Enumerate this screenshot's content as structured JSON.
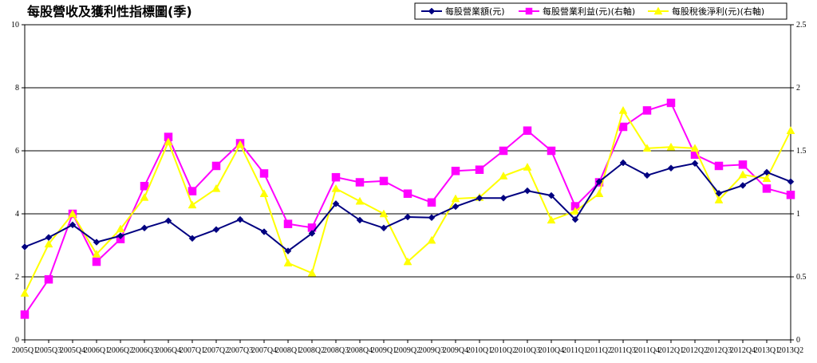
{
  "chart_data": {
    "type": "line",
    "title": "每股營收及獲利性指標圖(季)",
    "legend_position": "top-right",
    "grid": true,
    "categories": [
      "2005Q1",
      "2005Q3",
      "2005Q4",
      "2006Q1",
      "2006Q2",
      "2006Q3",
      "2006Q4",
      "2007Q1",
      "2007Q2",
      "2007Q3",
      "2007Q4",
      "2008Q1",
      "2008Q2",
      "2008Q3",
      "2008Q4",
      "2009Q1",
      "2009Q2",
      "2009Q3",
      "2009Q4",
      "2010Q1",
      "2010Q2",
      "2010Q3",
      "2010Q4",
      "2011Q1",
      "2011Q2",
      "2011Q3",
      "2011Q4",
      "2012Q1",
      "2012Q2",
      "2012Q3",
      "2012Q4",
      "2013Q1",
      "2013Q2"
    ],
    "y_left": {
      "min": 0,
      "max": 10,
      "ticks": [
        "0",
        "2",
        "4",
        "6",
        "8",
        "10"
      ]
    },
    "y_right": {
      "min": 0,
      "max": 2.5,
      "ticks": [
        "0",
        "0.5",
        "1",
        "1.5",
        "2",
        "2.5"
      ]
    },
    "series": [
      {
        "name": "每股營業額(元)",
        "axis": "left",
        "color": "#000080",
        "marker": "diamond",
        "values": [
          2.95,
          3.25,
          3.65,
          3.1,
          3.3,
          3.55,
          3.78,
          3.22,
          3.5,
          3.82,
          3.43,
          2.82,
          3.38,
          4.32,
          3.8,
          3.55,
          3.9,
          3.88,
          4.23,
          4.5,
          4.5,
          4.73,
          4.58,
          3.82,
          5.02,
          5.62,
          5.22,
          5.45,
          5.6,
          4.65,
          4.9,
          5.32,
          5.02
        ]
      },
      {
        "name": "每股營業利益(元)(右軸)",
        "axis": "right",
        "color": "#ff00ff",
        "marker": "square",
        "values": [
          0.2,
          0.48,
          1.0,
          0.62,
          0.8,
          1.22,
          1.61,
          1.18,
          1.38,
          1.56,
          1.32,
          0.92,
          0.89,
          1.29,
          1.25,
          1.26,
          1.16,
          1.09,
          1.34,
          1.35,
          1.5,
          1.66,
          1.5,
          1.06,
          1.25,
          1.69,
          1.82,
          1.88,
          1.47,
          1.38,
          1.39,
          1.2,
          1.15
        ]
      },
      {
        "name": "每股稅後淨利(元)(右軸)",
        "axis": "right",
        "color": "#ffff00",
        "marker": "triangle",
        "values": [
          0.37,
          0.76,
          1.0,
          0.68,
          0.88,
          1.13,
          1.57,
          1.07,
          1.2,
          1.55,
          1.16,
          0.61,
          0.53,
          1.2,
          1.1,
          1.0,
          0.62,
          0.79,
          1.12,
          1.13,
          1.3,
          1.37,
          0.95,
          1.02,
          1.16,
          1.82,
          1.52,
          1.53,
          1.52,
          1.11,
          1.31,
          1.28,
          1.66
        ]
      }
    ]
  }
}
